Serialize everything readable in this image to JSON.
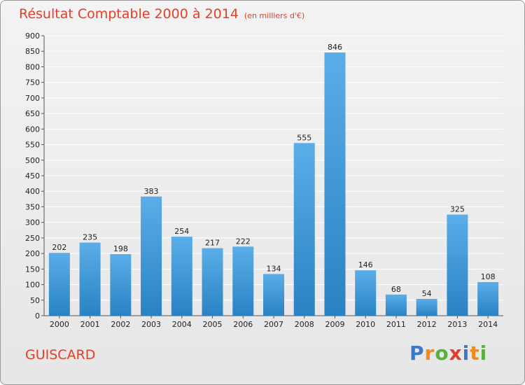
{
  "header": {
    "title": "Résultat Comptable 2000 à 2014",
    "unit": "(en milliers d'€)"
  },
  "footer": {
    "commune": "GUISCARD"
  },
  "logo": {
    "text": "Proxiti",
    "letters": [
      {
        "ch": "P",
        "color": "#3d78c8"
      },
      {
        "ch": "r",
        "color": "#f28a1c"
      },
      {
        "ch": "o",
        "color": "#58b23a"
      },
      {
        "ch": "x",
        "color": "#e33d2e"
      },
      {
        "ch": "i",
        "color": "#3d78c8"
      },
      {
        "ch": "t",
        "color": "#f28a1c"
      },
      {
        "ch": "i",
        "color": "#58b23a"
      }
    ]
  },
  "colors": {
    "bar_light": "#5aaee8",
    "bar_dark": "#2a82c4",
    "grid": "#ffffff"
  },
  "chart_data": {
    "type": "bar",
    "title": "Résultat Comptable 2000 à 2014",
    "xlabel": "",
    "ylabel": "",
    "categories": [
      "2000",
      "2001",
      "2002",
      "2003",
      "2004",
      "2005",
      "2006",
      "2007",
      "2008",
      "2009",
      "2010",
      "2011",
      "2012",
      "2013",
      "2014"
    ],
    "values": [
      202,
      235,
      198,
      383,
      254,
      217,
      222,
      134,
      555,
      846,
      146,
      68,
      54,
      325,
      108
    ],
    "ylim": [
      0,
      900
    ],
    "yticks": [
      0,
      50,
      100,
      150,
      200,
      250,
      300,
      350,
      400,
      450,
      500,
      550,
      600,
      650,
      700,
      750,
      800,
      850,
      900
    ],
    "grid": true
  }
}
